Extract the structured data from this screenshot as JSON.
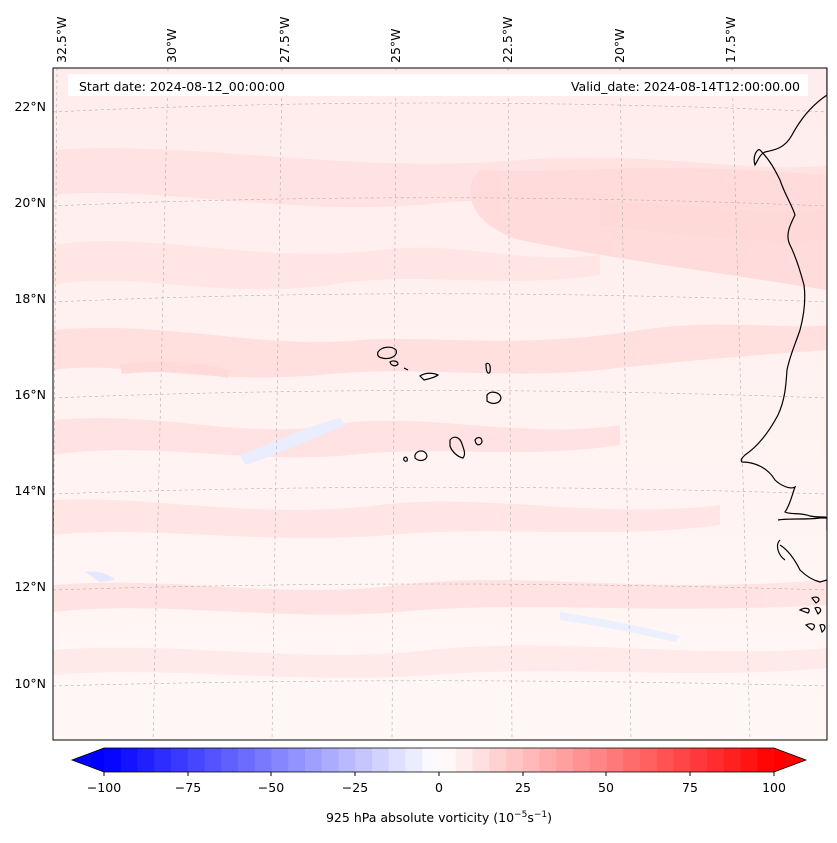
{
  "map": {
    "start_label": "Start date: 2024-08-12_00:00:00",
    "valid_label": "Valid_date: 2024-08-14T12:00:00.00",
    "lon_labels": [
      "32.5°W",
      "30°W",
      "27.5°W",
      "25°W",
      "22.5°W",
      "20°W",
      "17.5°W"
    ],
    "lat_labels": [
      "22°N",
      "20°N",
      "18°N",
      "16°N",
      "14°N",
      "12°N",
      "10°N"
    ],
    "extent": {
      "lon_min": -32.6,
      "lon_max": -16.3,
      "lat_min": 8.9,
      "lat_max": 22.7
    }
  },
  "colorbar": {
    "label_text": "925 hPa absolute vorticity (10",
    "label_exp1": "−5",
    "label_mid": "s",
    "label_exp2": "−1",
    "label_end": ")",
    "ticks": [
      "−100",
      "−75",
      "−50",
      "−25",
      "0",
      "25",
      "50",
      "75",
      "100"
    ],
    "min": -100,
    "max": 100,
    "neg_color": "#0000ff",
    "pos_color": "#ff0000",
    "mid_color": "#ffffff"
  },
  "colors": {
    "coastline": "#000000",
    "gridline": "#b0b0b0",
    "background_field": "#fff6f5"
  }
}
